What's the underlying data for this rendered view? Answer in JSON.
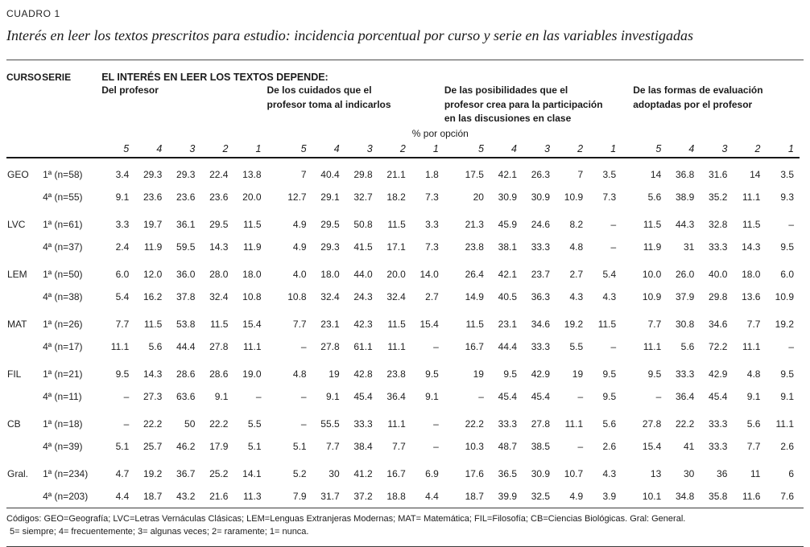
{
  "page": {
    "label": "CUADRO 1",
    "title": "Interés en leer los textos prescritos para estudio: incidencia porcentual por curso y serie en las variables investigadas"
  },
  "table": {
    "curso_header": "CURSO",
    "serie_header": "SERIE",
    "depends_header": "EL INTERÉS EN LEER LOS TEXTOS DEPENDE:",
    "pct_label": "% por opción",
    "groups": [
      {
        "title": "Del profesor",
        "lines": [
          "Del profesor"
        ]
      },
      {
        "title": "De los cuidados que el profesor toma al indicarlos",
        "lines": [
          "De los cuidados que el",
          "profesor toma al indicarlos"
        ]
      },
      {
        "title": "De las posibilidades que el profesor crea para la participación en las discusiones en clase",
        "lines": [
          "De las posibilidades que el",
          "profesor crea para la participación",
          "en las discusiones en clase"
        ]
      },
      {
        "title": "De las formas de evaluación adoptadas por el profesor",
        "lines": [
          "De las formas de evaluación",
          "adoptadas por el profesor"
        ]
      }
    ],
    "scale": [
      "5",
      "4",
      "3",
      "2",
      "1"
    ],
    "rows": [
      {
        "curso": "GEO",
        "serie": "1ª (n=58)",
        "values": [
          "3.4",
          "29.3",
          "29.3",
          "22.4",
          "13.8",
          "7",
          "40.4",
          "29.8",
          "21.1",
          "1.8",
          "17.5",
          "42.1",
          "26.3",
          "7",
          "3.5",
          "14",
          "36.8",
          "31.6",
          "14",
          "3.5"
        ]
      },
      {
        "curso": "",
        "serie": "4ª (n=55)",
        "values": [
          "9.1",
          "23.6",
          "23.6",
          "23.6",
          "20.0",
          "12.7",
          "29.1",
          "32.7",
          "18.2",
          "7.3",
          "20",
          "30.9",
          "30.9",
          "10.9",
          "7.3",
          "5.6",
          "38.9",
          "35.2",
          "11.1",
          "9.3"
        ]
      },
      {
        "curso": "LVC",
        "serie": "1ª (n=61)",
        "values": [
          "3.3",
          "19.7",
          "36.1",
          "29.5",
          "11.5",
          "4.9",
          "29.5",
          "50.8",
          "11.5",
          "3.3",
          "21.3",
          "45.9",
          "24.6",
          "8.2",
          "–",
          "11.5",
          "44.3",
          "32.8",
          "11.5",
          "–"
        ]
      },
      {
        "curso": "",
        "serie": "4ª (n=37)",
        "values": [
          "2.4",
          "11.9",
          "59.5",
          "14.3",
          "11.9",
          "4.9",
          "29.3",
          "41.5",
          "17.1",
          "7.3",
          "23.8",
          "38.1",
          "33.3",
          "4.8",
          "–",
          "11.9",
          "31",
          "33.3",
          "14.3",
          "9.5"
        ]
      },
      {
        "curso": "LEM",
        "serie": "1ª (n=50)",
        "values": [
          "6.0",
          "12.0",
          "36.0",
          "28.0",
          "18.0",
          "4.0",
          "18.0",
          "44.0",
          "20.0",
          "14.0",
          "26.4",
          "42.1",
          "23.7",
          "2.7",
          "5.4",
          "10.0",
          "26.0",
          "40.0",
          "18.0",
          "6.0"
        ]
      },
      {
        "curso": "",
        "serie": "4ª (n=38)",
        "values": [
          "5.4",
          "16.2",
          "37.8",
          "32.4",
          "10.8",
          "10.8",
          "32.4",
          "24.3",
          "32.4",
          "2.7",
          "14.9",
          "40.5",
          "36.3",
          "4.3",
          "4.3",
          "10.9",
          "37.9",
          "29.8",
          "13.6",
          "10.9"
        ]
      },
      {
        "curso": "MAT",
        "serie": "1ª (n=26)",
        "values": [
          "7.7",
          "11.5",
          "53.8",
          "11.5",
          "15.4",
          "7.7",
          "23.1",
          "42.3",
          "11.5",
          "15.4",
          "11.5",
          "23.1",
          "34.6",
          "19.2",
          "11.5",
          "7.7",
          "30.8",
          "34.6",
          "7.7",
          "19.2"
        ]
      },
      {
        "curso": "",
        "serie": "4ª (n=17)",
        "values": [
          "11.1",
          "5.6",
          "44.4",
          "27.8",
          "11.1",
          "–",
          "27.8",
          "61.1",
          "11.1",
          "–",
          "16.7",
          "44.4",
          "33.3",
          "5.5",
          "–",
          "11.1",
          "5.6",
          "72.2",
          "11.1",
          "–"
        ]
      },
      {
        "curso": "FIL",
        "serie": "1ª (n=21)",
        "values": [
          "9.5",
          "14.3",
          "28.6",
          "28.6",
          "19.0",
          "4.8",
          "19",
          "42.8",
          "23.8",
          "9.5",
          "19",
          "9.5",
          "42.9",
          "19",
          "9.5",
          "9.5",
          "33.3",
          "42.9",
          "4.8",
          "9.5"
        ]
      },
      {
        "curso": "",
        "serie": "4ª (n=11)",
        "values": [
          "–",
          "27.3",
          "63.6",
          "9.1",
          "–",
          "–",
          "9.1",
          "45.4",
          "36.4",
          "9.1",
          "–",
          "45.4",
          "45.4",
          "–",
          "9.5",
          "–",
          "36.4",
          "45.4",
          "9.1",
          "9.1"
        ]
      },
      {
        "curso": "CB",
        "serie": "1ª (n=18)",
        "values": [
          "–",
          "22.2",
          "50",
          "22.2",
          "5.5",
          "–",
          "55.5",
          "33.3",
          "11.1",
          "–",
          "22.2",
          "33.3",
          "27.8",
          "11.1",
          "5.6",
          "27.8",
          "22.2",
          "33.3",
          "5.6",
          "11.1"
        ]
      },
      {
        "curso": "",
        "serie": "4ª (n=39)",
        "values": [
          "5.1",
          "25.7",
          "46.2",
          "17.9",
          "5.1",
          "5.1",
          "7.7",
          "38.4",
          "7.7",
          "–",
          "10.3",
          "48.7",
          "38.5",
          "–",
          "2.6",
          "15.4",
          "41",
          "33.3",
          "7.7",
          "2.6"
        ]
      },
      {
        "curso": "Gral.",
        "serie": "1ª (n=234)",
        "values": [
          "4.7",
          "19.2",
          "36.7",
          "25.2",
          "14.1",
          "5.2",
          "30",
          "41.2",
          "16.7",
          "6.9",
          "17.6",
          "36.5",
          "30.9",
          "10.7",
          "4.3",
          "13",
          "30",
          "36",
          "11",
          "6"
        ]
      },
      {
        "curso": "",
        "serie": "4ª (n=203)",
        "values": [
          "4.4",
          "18.7",
          "43.2",
          "21.6",
          "11.3",
          "7.9",
          "31.7",
          "37.2",
          "18.8",
          "4.4",
          "18.7",
          "39.9",
          "32.5",
          "4.9",
          "3.9",
          "10.1",
          "34.8",
          "35.8",
          "11.6",
          "7.6"
        ]
      }
    ]
  },
  "footer": {
    "codes": "Códigos: GEO=Geografía; LVC=Letras Vernáculas Clásicas; LEM=Lenguas Extranjeras Modernas; MAT= Matemática; FIL=Filosofía; CB=Ciencias Biológicas. Gral: General.",
    "scale_note": "5= siempre; 4= frecuentemente; 3= algunas veces; 2= raramente; 1= nunca."
  }
}
